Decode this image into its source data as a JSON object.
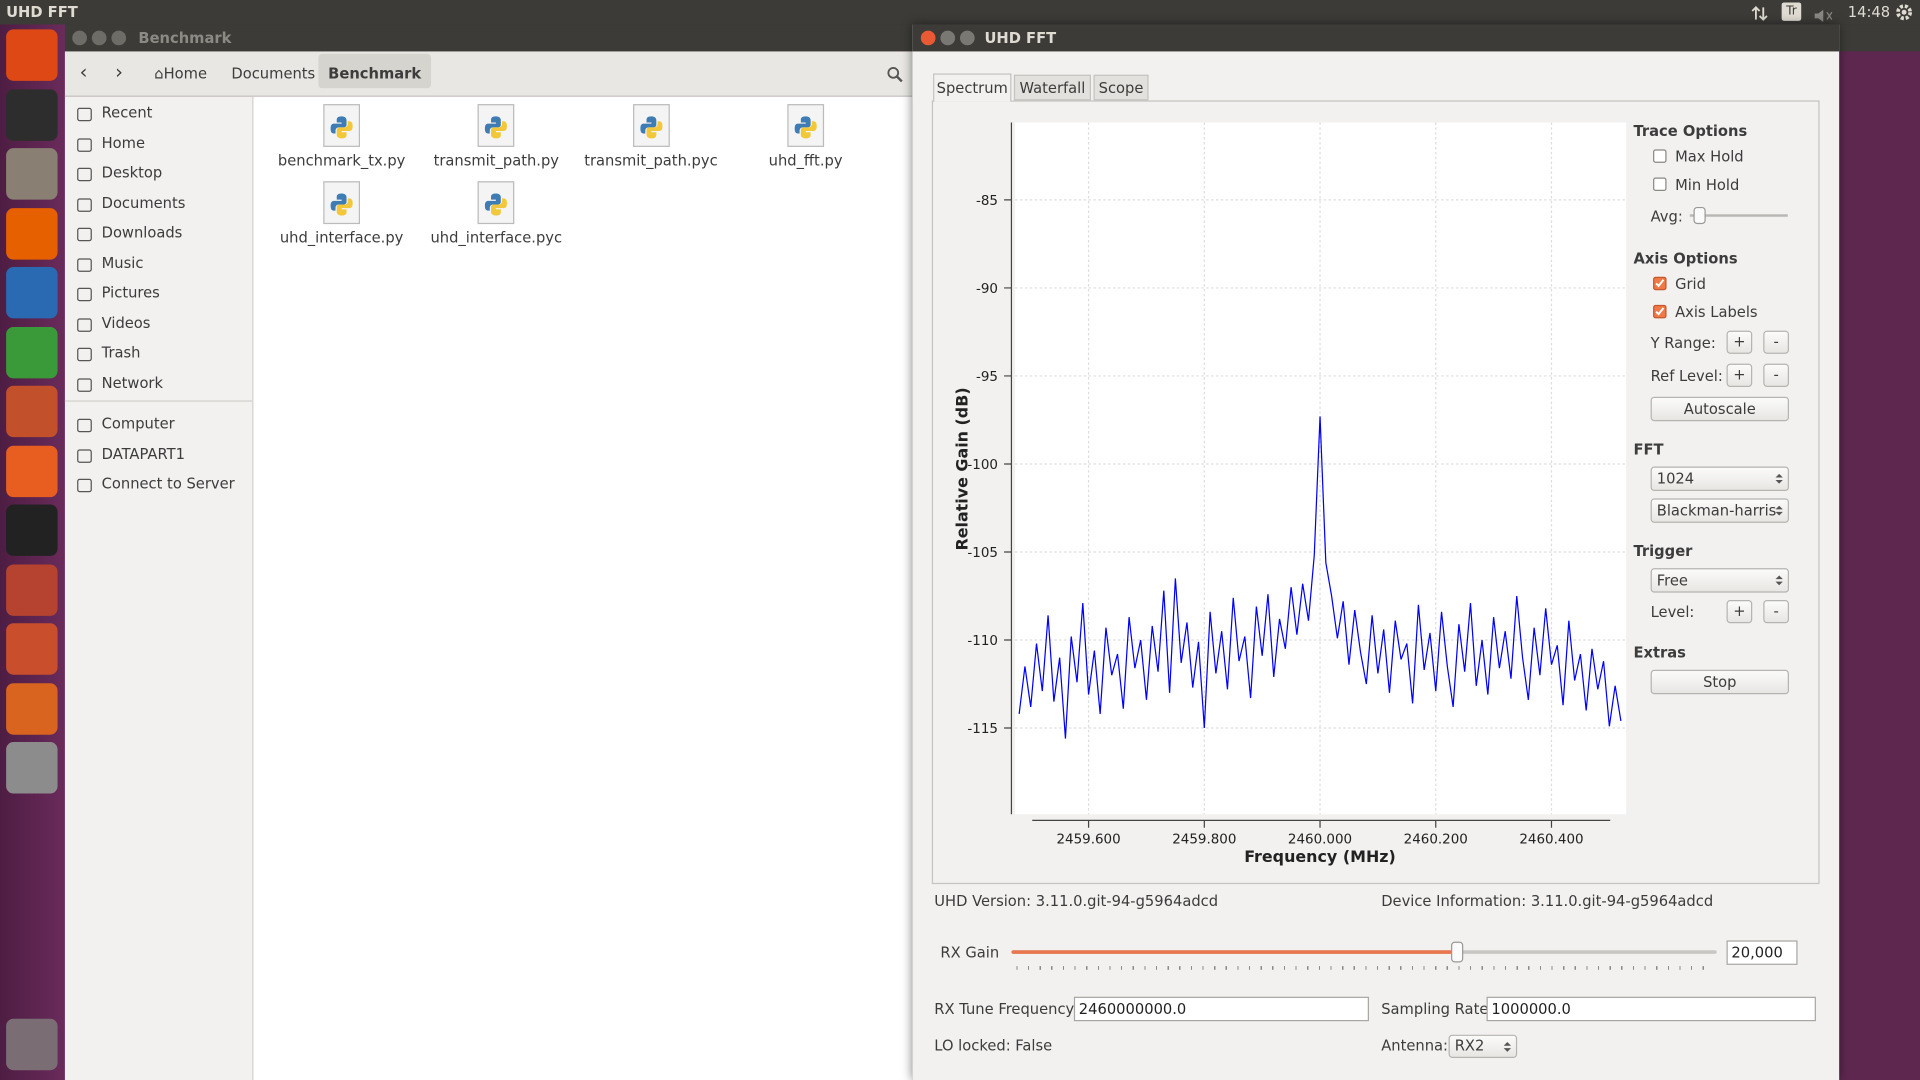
{
  "top_bar": {
    "title": "UHD FFT",
    "keyboard": "Tr",
    "clock": "14:48"
  },
  "file_manager": {
    "title": "Benchmark",
    "breadcrumbs": [
      "Home",
      "Documents",
      "Benchmark"
    ],
    "places": [
      "Recent",
      "Home",
      "Desktop",
      "Documents",
      "Downloads",
      "Music",
      "Pictures",
      "Videos",
      "Trash",
      "Network"
    ],
    "devices": [
      "Computer",
      "DATAPART1",
      "Connect to Server"
    ],
    "files": [
      "benchmark_tx.py",
      "transmit_path.py",
      "transmit_path.pyc",
      "uhd_fft.py",
      "uhd_interface.py",
      "uhd_interface.pyc"
    ]
  },
  "fft_window": {
    "title": "UHD FFT",
    "tabs": [
      "Spectrum",
      "Waterfall",
      "Scope"
    ],
    "trace_options": {
      "heading": "Trace Options",
      "max_hold": {
        "label": "Max Hold",
        "checked": false
      },
      "min_hold": {
        "label": "Min Hold",
        "checked": false
      },
      "avg": "Avg:"
    },
    "axis_options": {
      "heading": "Axis Options",
      "grid": {
        "label": "Grid",
        "checked": true
      },
      "axis_labels": {
        "label": "Axis Labels",
        "checked": true
      },
      "y_range": "Y Range:",
      "ref_level": "Ref Level:",
      "plus": "+",
      "minus": "-",
      "autoscale": "Autoscale"
    },
    "fft": {
      "heading": "FFT",
      "size": "1024",
      "window": "Blackman-harris"
    },
    "trigger": {
      "heading": "Trigger",
      "mode": "Free",
      "level": "Level:"
    },
    "extras": {
      "heading": "Extras",
      "stop": "Stop"
    },
    "uhd_version": "UHD Version: 3.11.0.git-94-g5964adcd",
    "device_info": "Device Information: 3.11.0.git-94-g5964adcd",
    "rx_gain": {
      "label": "RX Gain",
      "value": "20,000"
    },
    "rx_tune": {
      "label": "RX Tune Frequency:",
      "value": "2460000000.0"
    },
    "sampling_rate": {
      "label": "Sampling Rate:",
      "value": "1000000.0"
    },
    "lo_locked": "LO locked: False",
    "antenna": {
      "label": "Antenna:",
      "value": "RX2"
    }
  },
  "chart_data": {
    "type": "line",
    "x_label": "Frequency (MHz)",
    "y_label": "Relative Gain (dB)",
    "grid": true,
    "xlim": [
      2459.473,
      2460.529
    ],
    "ylim": [
      -119.9,
      -80.6
    ],
    "xticks": [
      {
        "value": 2459.6,
        "label": "2459.600"
      },
      {
        "value": 2459.8,
        "label": "2459.800"
      },
      {
        "value": 2460.0,
        "label": "2460.000"
      },
      {
        "value": 2460.2,
        "label": "2460.200"
      },
      {
        "value": 2460.4,
        "label": "2460.400"
      }
    ],
    "yticks": [
      -85,
      -90,
      -95,
      -100,
      -105,
      -110,
      -115
    ],
    "x": [
      2459.48,
      2459.49,
      2459.5,
      2459.51,
      2459.52,
      2459.53,
      2459.54,
      2459.55,
      2459.56,
      2459.57,
      2459.58,
      2459.59,
      2459.6,
      2459.61,
      2459.62,
      2459.63,
      2459.64,
      2459.65,
      2459.66,
      2459.67,
      2459.68,
      2459.69,
      2459.7,
      2459.71,
      2459.72,
      2459.73,
      2459.74,
      2459.75,
      2459.76,
      2459.77,
      2459.78,
      2459.79,
      2459.8,
      2459.81,
      2459.82,
      2459.83,
      2459.84,
      2459.85,
      2459.86,
      2459.87,
      2459.88,
      2459.89,
      2459.9,
      2459.91,
      2459.92,
      2459.93,
      2459.94,
      2459.95,
      2459.96,
      2459.97,
      2459.98,
      2459.99,
      2460.0,
      2460.01,
      2460.02,
      2460.03,
      2460.04,
      2460.05,
      2460.06,
      2460.07,
      2460.08,
      2460.09,
      2460.1,
      2460.11,
      2460.12,
      2460.13,
      2460.14,
      2460.15,
      2460.16,
      2460.17,
      2460.18,
      2460.19,
      2460.2,
      2460.21,
      2460.22,
      2460.23,
      2460.24,
      2460.25,
      2460.26,
      2460.27,
      2460.28,
      2460.29,
      2460.3,
      2460.31,
      2460.32,
      2460.33,
      2460.34,
      2460.35,
      2460.36,
      2460.37,
      2460.38,
      2460.39,
      2460.4,
      2460.41,
      2460.42,
      2460.43,
      2460.44,
      2460.45,
      2460.46,
      2460.47,
      2460.48,
      2460.49,
      2460.5,
      2460.51,
      2460.52
    ],
    "series": [
      {
        "color": "#0000ff",
        "values": [
          -114.2,
          -111.5,
          -113.8,
          -110.2,
          -112.9,
          -108.6,
          -113.5,
          -111.0,
          -115.6,
          -109.8,
          -112.4,
          -107.9,
          -113.1,
          -110.6,
          -114.2,
          -109.3,
          -112.0,
          -110.8,
          -113.9,
          -108.7,
          -111.6,
          -110.0,
          -113.4,
          -109.2,
          -111.8,
          -107.2,
          -113.0,
          -106.5,
          -111.3,
          -109.0,
          -112.7,
          -110.1,
          -115.0,
          -108.4,
          -111.9,
          -109.5,
          -112.8,
          -107.6,
          -111.2,
          -109.8,
          -113.3,
          -108.1,
          -110.9,
          -107.4,
          -112.1,
          -108.8,
          -110.5,
          -107.0,
          -109.7,
          -106.8,
          -108.9,
          -105.2,
          -97.3,
          -105.6,
          -107.5,
          -109.9,
          -107.8,
          -111.4,
          -108.3,
          -110.7,
          -112.5,
          -108.6,
          -111.9,
          -109.4,
          -113.0,
          -108.9,
          -111.1,
          -110.2,
          -113.6,
          -108.0,
          -111.7,
          -109.6,
          -112.9,
          -108.4,
          -111.5,
          -113.8,
          -109.1,
          -111.8,
          -107.9,
          -112.6,
          -110.0,
          -113.1,
          -108.7,
          -111.6,
          -109.5,
          -112.2,
          -107.5,
          -111.0,
          -113.4,
          -109.3,
          -112.0,
          -108.2,
          -111.4,
          -110.3,
          -113.7,
          -108.9,
          -112.3,
          -110.8,
          -114.0,
          -110.5,
          -112.8,
          -111.2,
          -114.9,
          -112.6,
          -114.6
        ]
      }
    ]
  }
}
